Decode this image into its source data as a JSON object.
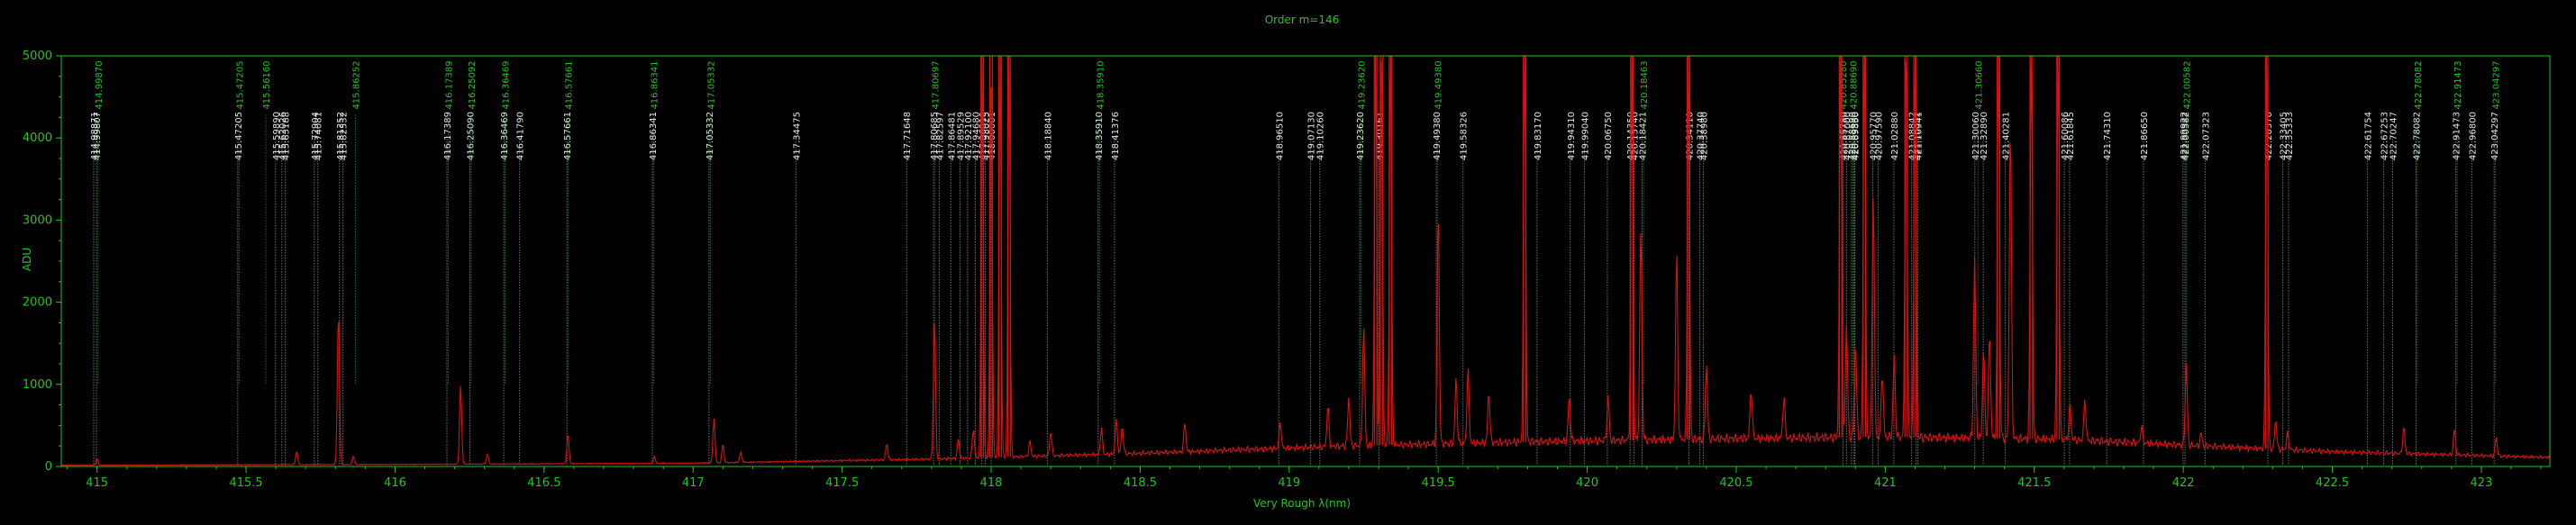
{
  "chart_data": {
    "type": "line",
    "title": "Order m=146",
    "xlabel": "Very Rough λ(nm)",
    "ylabel": "ADU",
    "xlim": [
      414.88,
      423.23
    ],
    "ylim": [
      0,
      5000
    ],
    "xticks": [
      415,
      415.5,
      416,
      416.5,
      417,
      417.5,
      418,
      418.5,
      419,
      419.5,
      420,
      420.5,
      421,
      421.5,
      422,
      422.5,
      423
    ],
    "yticks": [
      0,
      1000,
      2000,
      3000,
      4000,
      5000
    ],
    "colors": {
      "axes": "#22c322",
      "spectrum": "#e01010",
      "reference": "#e8e8e8",
      "candidate": "#22c322"
    },
    "series": [
      {
        "role": "spectrum",
        "baseline": [
          [
            414.88,
            15
          ],
          [
            416.0,
            25
          ],
          [
            417.0,
            40
          ],
          [
            417.8,
            90
          ],
          [
            418.5,
            160
          ],
          [
            419.2,
            250
          ],
          [
            419.8,
            300
          ],
          [
            420.5,
            340
          ],
          [
            421.0,
            360
          ],
          [
            421.6,
            330
          ],
          [
            422.0,
            260
          ],
          [
            422.5,
            180
          ],
          [
            423.23,
            110
          ]
        ],
        "peaks": [
          [
            415.0,
            80
          ],
          [
            415.67,
            160
          ],
          [
            415.81,
            1880
          ],
          [
            415.86,
            100
          ],
          [
            416.22,
            970
          ],
          [
            416.31,
            120
          ],
          [
            416.58,
            360
          ],
          [
            416.87,
            80
          ],
          [
            417.07,
            540
          ],
          [
            417.1,
            220
          ],
          [
            417.16,
            120
          ],
          [
            417.65,
            200
          ],
          [
            417.81,
            1720
          ],
          [
            417.89,
            240
          ],
          [
            417.94,
            350
          ],
          [
            417.97,
            5000
          ],
          [
            418.0,
            5000
          ],
          [
            418.03,
            5000
          ],
          [
            418.06,
            5000
          ],
          [
            418.13,
            180
          ],
          [
            418.2,
            300
          ],
          [
            418.37,
            320
          ],
          [
            418.42,
            420
          ],
          [
            418.44,
            340
          ],
          [
            418.65,
            360
          ],
          [
            418.97,
            330
          ],
          [
            419.13,
            500
          ],
          [
            419.2,
            600
          ],
          [
            419.25,
            1450
          ],
          [
            419.29,
            5000
          ],
          [
            419.31,
            5000
          ],
          [
            419.34,
            5000
          ],
          [
            419.5,
            2900
          ],
          [
            419.56,
            800
          ],
          [
            419.6,
            900
          ],
          [
            419.67,
            620
          ],
          [
            419.79,
            5000
          ],
          [
            419.94,
            550
          ],
          [
            420.07,
            520
          ],
          [
            420.15,
            5000
          ],
          [
            420.18,
            2600
          ],
          [
            420.3,
            2300
          ],
          [
            420.34,
            5000
          ],
          [
            420.4,
            900
          ],
          [
            420.55,
            620
          ],
          [
            420.66,
            500
          ],
          [
            420.85,
            5000
          ],
          [
            420.87,
            1400
          ],
          [
            420.9,
            1200
          ],
          [
            420.93,
            5000
          ],
          [
            420.96,
            3000
          ],
          [
            420.99,
            800
          ],
          [
            421.03,
            1000
          ],
          [
            421.07,
            5000
          ],
          [
            421.1,
            5000
          ],
          [
            421.3,
            2200
          ],
          [
            421.33,
            1100
          ],
          [
            421.35,
            1300
          ],
          [
            421.38,
            5000
          ],
          [
            421.42,
            3900
          ],
          [
            421.49,
            5000
          ],
          [
            421.58,
            5000
          ],
          [
            421.62,
            420
          ],
          [
            421.67,
            500
          ],
          [
            421.86,
            200
          ],
          [
            422.01,
            1000
          ],
          [
            422.06,
            150
          ],
          [
            422.28,
            5000
          ],
          [
            422.31,
            360
          ],
          [
            422.35,
            200
          ],
          [
            422.74,
            320
          ],
          [
            422.91,
            320
          ],
          [
            423.05,
            220
          ]
        ]
      }
    ],
    "reference_lines": {
      "line_top": 4020,
      "label_top": 4320,
      "wavelengths": [
        "414.98871",
        "414.99807",
        "415.47205",
        "415.59890",
        "415.62026",
        "415.63188",
        "415.72904",
        "415.74081",
        "415.81352",
        "415.82532",
        "416.17389",
        "416.25090",
        "416.36469",
        "416.41790",
        "416.57661",
        "416.86341",
        "417.05332",
        "417.34475",
        "417.71648",
        "417.80685",
        "417.82597",
        "417.86481",
        "417.89529",
        "417.92100",
        "417.94680",
        "417.96910",
        "417.98025",
        "418.00001",
        "418.18840",
        "418.35910",
        "418.41376",
        "418.96510",
        "419.07130",
        "419.10260",
        "419.23620",
        "419.30161",
        "419.49380",
        "419.58326",
        "419.83170",
        "419.94310",
        "419.99040",
        "420.06750",
        "420.14350",
        "420.15740",
        "420.18421",
        "420.34110",
        "420.37740",
        "420.38980",
        "420.85780",
        "420.87000",
        "420.88690",
        "420.89560",
        "420.89830",
        "420.95770",
        "420.97590",
        "421.02880",
        "421.08842",
        "421.10352",
        "421.10941",
        "421.30060",
        "421.32890",
        "421.40281",
        "421.60086",
        "421.61845",
        "421.74310",
        "421.86650",
        "421.99922",
        "422.00582",
        "422.07323",
        "422.28370",
        "422.33405",
        "422.35333",
        "422.61754",
        "422.67253",
        "422.70247",
        "422.78082",
        "422.91473",
        "422.96800",
        "423.04297"
      ]
    },
    "candidate_lines": {
      "line_top": 4280,
      "label_top": 4940,
      "wavelengths": [
        "414.99870",
        "415.47205",
        "415.56160",
        "415.86252",
        "416.17389",
        "416.25092",
        "416.36469",
        "416.57661",
        "416.86341",
        "417.05332",
        "417.80697",
        "418.35910",
        "419.23620",
        "419.49380",
        "420.18463",
        "420.85280",
        "420.88690",
        "421.30660",
        "422.00582",
        "422.78082",
        "422.91473",
        "423.04297"
      ]
    }
  }
}
